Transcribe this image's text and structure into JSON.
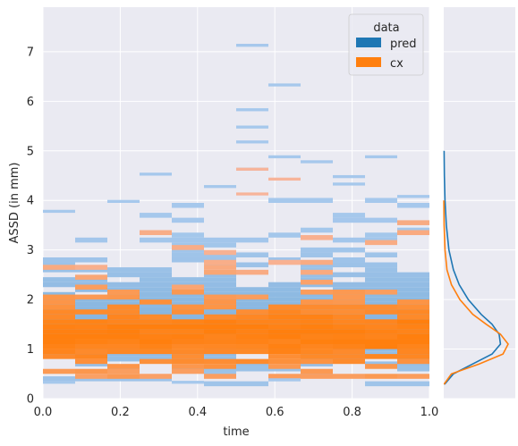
{
  "colors": {
    "panel_bg": "#eaeaf2",
    "grid": "#ffffff",
    "pred": "#1f77b4",
    "cx": "#ff7f0e",
    "pred_light": "#a6c8ec",
    "cx_light": "#f7b49a"
  },
  "chart_data": {
    "type": "heatmap",
    "subtype": "joint 2D histogram with marginal KDE",
    "xlabel": "time",
    "ylabel": "ASSD (in mm)",
    "xlim": [
      0.0,
      1.0
    ],
    "ylim": [
      0,
      7.9
    ],
    "xticks": [
      "0.0",
      "0.2",
      "0.4",
      "0.6",
      "0.8",
      "1.0"
    ],
    "yticks": [
      "0",
      "1",
      "2",
      "3",
      "4",
      "5",
      "6",
      "7"
    ],
    "grid": true,
    "legend": {
      "title": "data",
      "position": "top-right",
      "entries": [
        "pred",
        "cx"
      ]
    },
    "x_bins": 12,
    "y_bin_width": 0.1,
    "series": [
      {
        "name": "pred",
        "distribution": {
          "mean": 1.55,
          "spread": 0.75,
          "min": 0.25,
          "max": 7.15
        },
        "outliers": [
          {
            "x": 0.55,
            "y": 7.1
          },
          {
            "x": 0.65,
            "y": 6.3
          },
          {
            "x": 0.55,
            "y": 5.8
          },
          {
            "x": 0.58,
            "y": 5.45
          },
          {
            "x": 0.55,
            "y": 5.15
          },
          {
            "x": 0.6,
            "y": 4.85
          },
          {
            "x": 0.68,
            "y": 4.75
          },
          {
            "x": 0.88,
            "y": 4.85
          },
          {
            "x": 0.52,
            "y": 4.6
          },
          {
            "x": 0.3,
            "y": 4.5
          },
          {
            "x": 0.8,
            "y": 4.45
          },
          {
            "x": 0.8,
            "y": 4.3
          },
          {
            "x": 0.42,
            "y": 4.25
          },
          {
            "x": 0.95,
            "y": 4.05
          },
          {
            "x": 0.22,
            "y": 3.95
          },
          {
            "x": 0.05,
            "y": 3.75
          },
          {
            "x": 0.03,
            "y": 0.3
          },
          {
            "x": 0.38,
            "y": 0.3
          },
          {
            "x": 0.63,
            "y": 0.35
          }
        ],
        "marginal_kde": {
          "y": [
            0.3,
            0.5,
            0.7,
            0.9,
            1.1,
            1.3,
            1.5,
            1.7,
            2.0,
            2.3,
            2.6,
            3.0,
            3.5,
            4.0,
            4.5,
            5.0
          ],
          "density": [
            0.02,
            0.15,
            0.45,
            0.75,
            0.88,
            0.86,
            0.75,
            0.58,
            0.38,
            0.24,
            0.15,
            0.08,
            0.04,
            0.02,
            0.01,
            0.005
          ]
        }
      },
      {
        "name": "cx",
        "distribution": {
          "mean": 1.25,
          "spread": 0.6,
          "min": 0.4,
          "max": 4.6
        },
        "outliers": [
          {
            "x": 0.58,
            "y": 4.6
          },
          {
            "x": 0.52,
            "y": 4.1
          },
          {
            "x": 0.65,
            "y": 4.4
          }
        ],
        "marginal_kde": {
          "y": [
            0.3,
            0.5,
            0.7,
            0.9,
            1.1,
            1.3,
            1.5,
            1.7,
            2.0,
            2.3,
            2.6,
            3.0,
            3.5,
            4.0
          ],
          "density": [
            0.01,
            0.12,
            0.55,
            0.92,
            1.0,
            0.88,
            0.66,
            0.45,
            0.25,
            0.12,
            0.05,
            0.02,
            0.006,
            0.002
          ]
        }
      }
    ]
  }
}
